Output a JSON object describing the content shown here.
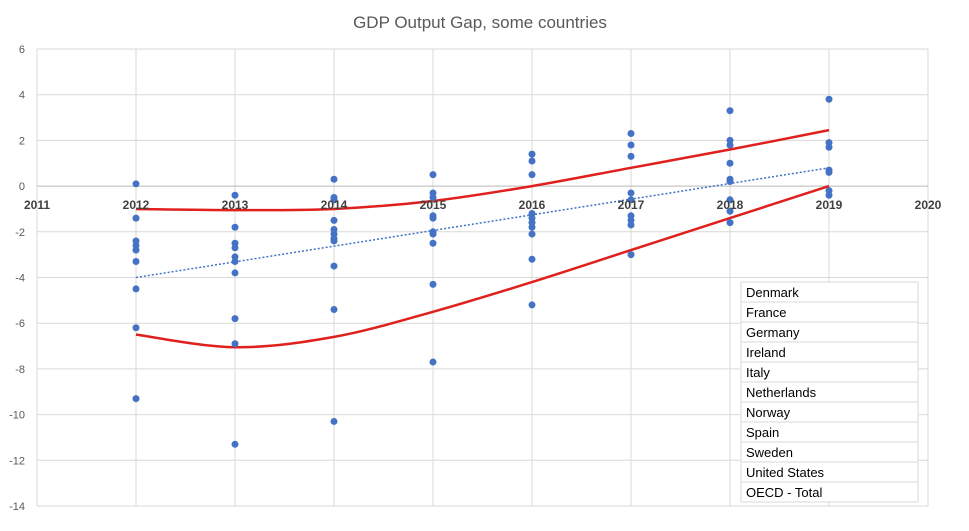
{
  "chart_data": {
    "type": "scatter",
    "title": "GDP Output Gap, some countries",
    "xlabel": "",
    "ylabel": "",
    "xlim": [
      2011,
      2020
    ],
    "ylim": [
      -14,
      6
    ],
    "x_ticks": [
      "2011",
      "2012",
      "2013",
      "2014",
      "2015",
      "2016",
      "2017",
      "2018",
      "2019",
      "2020"
    ],
    "y_ticks": [
      "6",
      "4",
      "2",
      "0",
      "-2",
      "-4",
      "-6",
      "-8",
      "-10",
      "-12",
      "-14"
    ],
    "grid": true,
    "legend_position": "bottom-right",
    "legend": [
      "Denmark",
      "France",
      "Germany",
      "Ireland",
      "Italy",
      "Netherlands",
      "Norway",
      "Spain",
      "Sweden",
      "United States",
      "OECD - Total"
    ],
    "colors": {
      "points": "#4472c4",
      "trend": "#4472c4",
      "band": "#e0201c",
      "grid": "#d9d9d9",
      "axis": "#bfbfbf"
    },
    "points": [
      {
        "x": 2012,
        "y": 0.1
      },
      {
        "x": 2012,
        "y": -1.4
      },
      {
        "x": 2012,
        "y": -2.4
      },
      {
        "x": 2012,
        "y": -2.6
      },
      {
        "x": 2012,
        "y": -2.8
      },
      {
        "x": 2012,
        "y": -3.3
      },
      {
        "x": 2012,
        "y": -4.5
      },
      {
        "x": 2012,
        "y": -6.2
      },
      {
        "x": 2012,
        "y": -9.3
      },
      {
        "x": 2013,
        "y": -0.4
      },
      {
        "x": 2013,
        "y": -1.8
      },
      {
        "x": 2013,
        "y": -2.5
      },
      {
        "x": 2013,
        "y": -2.7
      },
      {
        "x": 2013,
        "y": -3.1
      },
      {
        "x": 2013,
        "y": -3.3
      },
      {
        "x": 2013,
        "y": -3.8
      },
      {
        "x": 2013,
        "y": -5.8
      },
      {
        "x": 2013,
        "y": -6.9
      },
      {
        "x": 2013,
        "y": -11.3
      },
      {
        "x": 2014,
        "y": 0.3
      },
      {
        "x": 2014,
        "y": -0.5
      },
      {
        "x": 2014,
        "y": -0.6
      },
      {
        "x": 2014,
        "y": -1.5
      },
      {
        "x": 2014,
        "y": -1.9
      },
      {
        "x": 2014,
        "y": -2.1
      },
      {
        "x": 2014,
        "y": -2.3
      },
      {
        "x": 2014,
        "y": -2.4
      },
      {
        "x": 2014,
        "y": -3.5
      },
      {
        "x": 2014,
        "y": -5.4
      },
      {
        "x": 2014,
        "y": -10.3
      },
      {
        "x": 2015,
        "y": 0.5
      },
      {
        "x": 2015,
        "y": -0.3
      },
      {
        "x": 2015,
        "y": -0.5
      },
      {
        "x": 2015,
        "y": -1.3
      },
      {
        "x": 2015,
        "y": -1.4
      },
      {
        "x": 2015,
        "y": -2.0
      },
      {
        "x": 2015,
        "y": -2.1
      },
      {
        "x": 2015,
        "y": -2.5
      },
      {
        "x": 2015,
        "y": -4.3
      },
      {
        "x": 2015,
        "y": -7.7
      },
      {
        "x": 2016,
        "y": 1.4
      },
      {
        "x": 2016,
        "y": 1.1
      },
      {
        "x": 2016,
        "y": 0.5
      },
      {
        "x": 2016,
        "y": -1.2
      },
      {
        "x": 2016,
        "y": -1.4
      },
      {
        "x": 2016,
        "y": -1.6
      },
      {
        "x": 2016,
        "y": -1.8
      },
      {
        "x": 2016,
        "y": -2.1
      },
      {
        "x": 2016,
        "y": -3.2
      },
      {
        "x": 2016,
        "y": -5.2
      },
      {
        "x": 2017,
        "y": 2.3
      },
      {
        "x": 2017,
        "y": 1.8
      },
      {
        "x": 2017,
        "y": 1.3
      },
      {
        "x": 2017,
        "y": -0.3
      },
      {
        "x": 2017,
        "y": -0.6
      },
      {
        "x": 2017,
        "y": -1.3
      },
      {
        "x": 2017,
        "y": -1.5
      },
      {
        "x": 2017,
        "y": -1.7
      },
      {
        "x": 2017,
        "y": -3.0
      },
      {
        "x": 2018,
        "y": 3.3
      },
      {
        "x": 2018,
        "y": 2.0
      },
      {
        "x": 2018,
        "y": 1.8
      },
      {
        "x": 2018,
        "y": 1.0
      },
      {
        "x": 2018,
        "y": 0.3
      },
      {
        "x": 2018,
        "y": 0.2
      },
      {
        "x": 2018,
        "y": -0.6
      },
      {
        "x": 2018,
        "y": -1.1
      },
      {
        "x": 2018,
        "y": -1.6
      },
      {
        "x": 2019,
        "y": 3.8
      },
      {
        "x": 2019,
        "y": 1.9
      },
      {
        "x": 2019,
        "y": 1.7
      },
      {
        "x": 2019,
        "y": 0.7
      },
      {
        "x": 2019,
        "y": 0.6
      },
      {
        "x": 2019,
        "y": -0.2
      },
      {
        "x": 2019,
        "y": -0.4
      }
    ],
    "trendline": [
      {
        "x": 2012,
        "y": -4.0
      },
      {
        "x": 2019,
        "y": 0.8
      }
    ],
    "upper_curve": [
      {
        "x": 2012,
        "y": -1.0
      },
      {
        "x": 2013,
        "y": -1.05
      },
      {
        "x": 2014,
        "y": -1.0
      },
      {
        "x": 2015,
        "y": -0.65
      },
      {
        "x": 2016,
        "y": 0.0
      },
      {
        "x": 2017,
        "y": 0.8
      },
      {
        "x": 2018,
        "y": 1.6
      },
      {
        "x": 2019,
        "y": 2.45
      }
    ],
    "lower_curve": [
      {
        "x": 2012,
        "y": -6.5
      },
      {
        "x": 2013,
        "y": -7.05
      },
      {
        "x": 2014,
        "y": -6.6
      },
      {
        "x": 2015,
        "y": -5.5
      },
      {
        "x": 2016,
        "y": -4.2
      },
      {
        "x": 2017,
        "y": -2.8
      },
      {
        "x": 2018,
        "y": -1.4
      },
      {
        "x": 2019,
        "y": 0.0
      }
    ]
  }
}
